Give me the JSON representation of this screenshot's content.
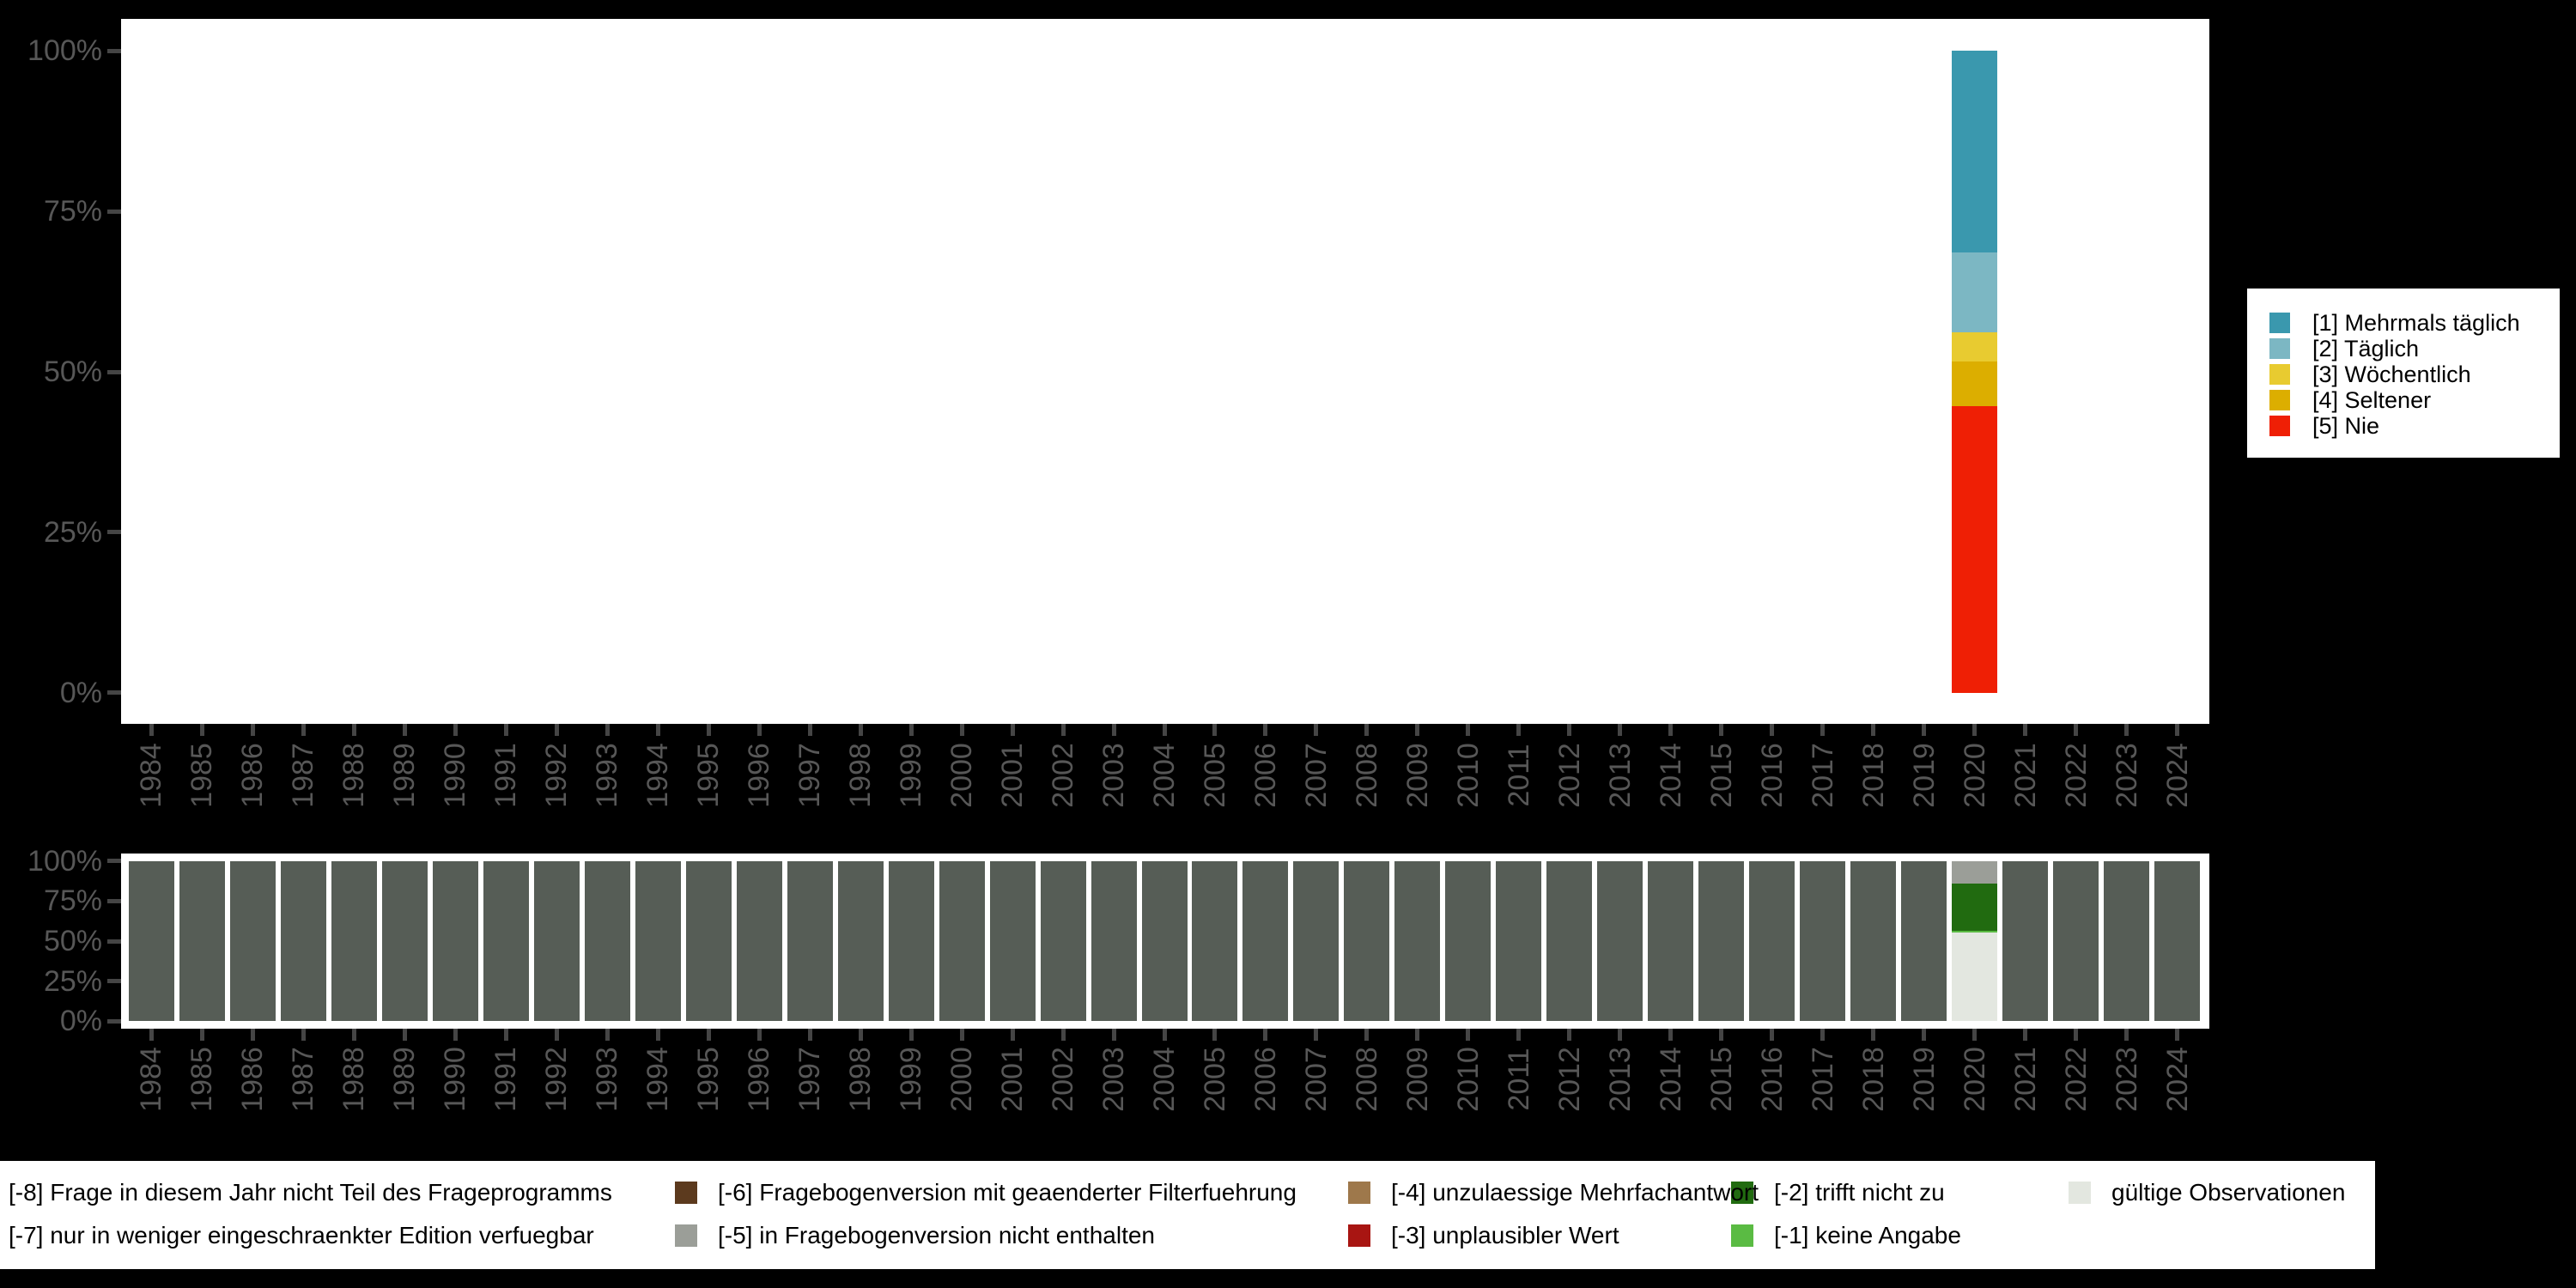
{
  "page": {
    "background_color": "#000000",
    "panel_color": "#ffffff",
    "axis_label_color": "#575757",
    "axis_tick_color": "#454545"
  },
  "chart_data": [
    {
      "id": "frequency",
      "type": "bar",
      "stacked": true,
      "title": "",
      "xlabel": "",
      "ylabel": "",
      "ylim": [
        0,
        100
      ],
      "grid": false,
      "legend_position": "right",
      "yticks": [
        {
          "label": "100%",
          "value": 100
        },
        {
          "label": "75%",
          "value": 75
        },
        {
          "label": "50%",
          "value": 50
        },
        {
          "label": "25%",
          "value": 25
        },
        {
          "label": "0%",
          "value": 0
        }
      ],
      "x_categories": [
        "1984",
        "1985",
        "1986",
        "1987",
        "1988",
        "1989",
        "1990",
        "1991",
        "1992",
        "1993",
        "1994",
        "1995",
        "1996",
        "1997",
        "1998",
        "1999",
        "2000",
        "2001",
        "2002",
        "2003",
        "2004",
        "2005",
        "2006",
        "2007",
        "2008",
        "2009",
        "2010",
        "2011",
        "2012",
        "2013",
        "2014",
        "2015",
        "2016",
        "2017",
        "2018",
        "2019",
        "2020",
        "2021",
        "2022",
        "2023",
        "2024"
      ],
      "keys": [
        {
          "key": "1",
          "label": "[1] Mehrmals täglich",
          "color": "#3a98ae"
        },
        {
          "key": "2",
          "label": "[2] Täglich",
          "color": "#7cb7c3"
        },
        {
          "key": "3",
          "label": "[3] Wöchentlich",
          "color": "#e8cb30"
        },
        {
          "key": "4",
          "label": "[4] Seltener",
          "color": "#dcae00"
        },
        {
          "key": "5",
          "label": "[5] Nie",
          "color": "#ef1f05"
        }
      ],
      "bars": {
        "2020": [
          {
            "key": "1",
            "value": 31.4
          },
          {
            "key": "2",
            "value": 12.5
          },
          {
            "key": "3",
            "value": 4.5
          },
          {
            "key": "4",
            "value": 7.0
          },
          {
            "key": "5",
            "value": 44.6
          }
        ]
      }
    },
    {
      "id": "missing",
      "type": "bar",
      "stacked": true,
      "title": "",
      "xlabel": "",
      "ylabel": "",
      "ylim": [
        0,
        100
      ],
      "grid": false,
      "legend_position": "bottom",
      "yticks": [
        {
          "label": "100%",
          "value": 100
        },
        {
          "label": "75%",
          "value": 75
        },
        {
          "label": "50%",
          "value": 50
        },
        {
          "label": "25%",
          "value": 25
        },
        {
          "label": "0%",
          "value": 0
        }
      ],
      "x_categories": [
        "1984",
        "1985",
        "1986",
        "1987",
        "1988",
        "1989",
        "1990",
        "1991",
        "1992",
        "1993",
        "1994",
        "1995",
        "1996",
        "1997",
        "1998",
        "1999",
        "2000",
        "2001",
        "2002",
        "2003",
        "2004",
        "2005",
        "2006",
        "2007",
        "2008",
        "2009",
        "2010",
        "2011",
        "2012",
        "2013",
        "2014",
        "2015",
        "2016",
        "2017",
        "2018",
        "2019",
        "2020",
        "2021",
        "2022",
        "2023",
        "2024"
      ],
      "keys": [
        {
          "key": "-8",
          "label": "[-8] Frage in diesem Jahr nicht Teil des Frageprogramms",
          "color": "#565d56",
          "legend_swatch": false
        },
        {
          "key": "-7",
          "label": "[-7] nur in weniger eingeschraenkter Edition verfuegbar",
          "color": "",
          "legend_swatch": false
        },
        {
          "key": "-6",
          "label": "[-6] Fragebogenversion mit geaenderter Filterfuehrung",
          "color": "#5c3a1e",
          "legend_swatch": true
        },
        {
          "key": "-5",
          "label": "[-5] in Fragebogenversion nicht enthalten",
          "color": "#9b9e98",
          "legend_swatch": true
        },
        {
          "key": "-4",
          "label": "[-4] unzulaessige Mehrfachantwort",
          "color": "#9e784b",
          "legend_swatch": true
        },
        {
          "key": "-3",
          "label": "[-3] unplausibler Wert",
          "color": "#a81512",
          "legend_swatch": true
        },
        {
          "key": "-2",
          "label": "[-2] trifft nicht zu",
          "color": "#216b10",
          "legend_swatch": true
        },
        {
          "key": "-1",
          "label": "[-1] keine Angabe",
          "color": "#5abb43",
          "legend_swatch": true
        },
        {
          "key": "valid",
          "label": "gültige Observationen",
          "color": "#e3e7e0",
          "legend_swatch": true
        }
      ],
      "legend_rows": [
        [
          "-8",
          "-6",
          "-4",
          "-2",
          "valid"
        ],
        [
          "-7",
          "-5",
          "-3",
          "-1"
        ]
      ],
      "default_bar": [
        {
          "key": "-8",
          "value": 100
        }
      ],
      "bars": {
        "2020": [
          {
            "key": "-5",
            "value": 14.3
          },
          {
            "key": "-2",
            "value": 29.3
          },
          {
            "key": "-1",
            "value": 0.9
          },
          {
            "key": "valid",
            "value": 55.5
          }
        ]
      }
    }
  ]
}
